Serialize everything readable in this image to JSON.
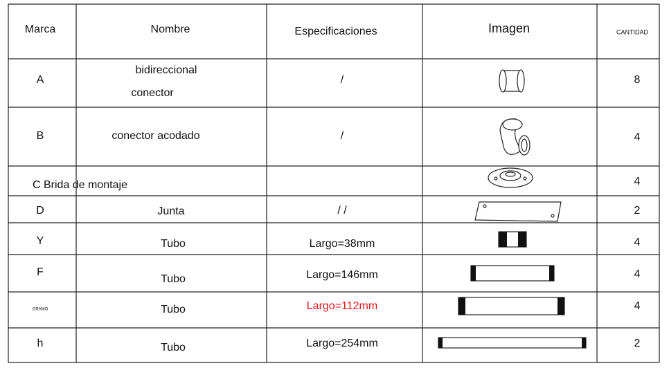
{
  "table": {
    "header": [
      "Marca",
      "Nombre",
      "Especificaciones",
      "Imagen",
      "CANTIDAD"
    ],
    "rows": [
      {
        "mark": "A",
        "name": [
          "bidireccional",
          "conector"
        ],
        "spec": "/",
        "qty": "8"
      },
      {
        "mark": "B",
        "name": [
          "conector acodado"
        ],
        "spec": "/",
        "qty": "4"
      },
      {
        "merged": "C Brida de montaje",
        "qty": "4"
      },
      {
        "mark": "D",
        "name": [
          "Junta"
        ],
        "spec": "/ /",
        "qty": "2"
      },
      {
        "mark": "Y",
        "name": [
          "Tubo"
        ],
        "spec": "Largo=38mm",
        "qty": "4"
      },
      {
        "mark": "F",
        "name": [
          "Tubo"
        ],
        "spec": "Largo=146mm",
        "qty": "4"
      },
      {
        "mark": "GRAMO",
        "name": [
          "Tubo"
        ],
        "spec": "Largo=112mm",
        "spec_color": "#e8141c",
        "qty": "4"
      },
      {
        "mark": "h",
        "name": [
          "Tubo"
        ],
        "spec": "Largo=254mm",
        "qty": "2"
      }
    ]
  }
}
